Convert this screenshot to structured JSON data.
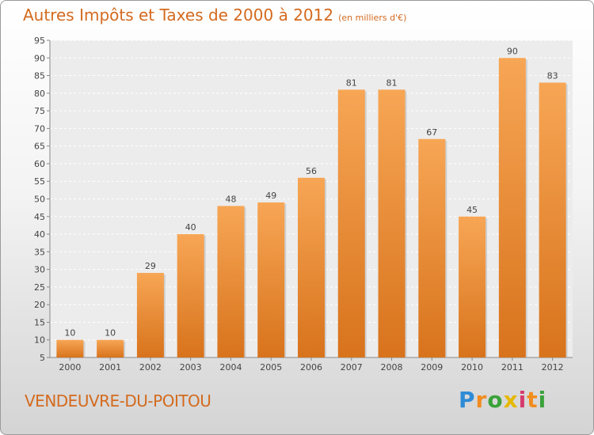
{
  "title": "Autres Impôts et Taxes de 2000 à 2012",
  "subtitle": "(en milliers d'€)",
  "commune": "VENDEUVRE-DU-POITOU",
  "logo": {
    "letters": [
      "P",
      "r",
      "o",
      "x",
      "i",
      "t",
      "i"
    ],
    "colors": [
      "#2e8bd6",
      "#f28c1e",
      "#3aa23a",
      "#e6b800",
      "#d63b6e",
      "#f28c1e",
      "#3aa23a"
    ]
  },
  "chart_data": {
    "type": "bar",
    "categories": [
      "2000",
      "2001",
      "2002",
      "2003",
      "2004",
      "2005",
      "2006",
      "2007",
      "2008",
      "2009",
      "2010",
      "2011",
      "2012"
    ],
    "values": [
      10,
      10,
      29,
      40,
      48,
      49,
      56,
      81,
      81,
      67,
      45,
      90,
      83
    ],
    "ylim": [
      5,
      95
    ],
    "yticks": [
      5,
      10,
      15,
      20,
      25,
      30,
      35,
      40,
      45,
      50,
      55,
      60,
      65,
      70,
      75,
      80,
      85,
      90,
      95
    ],
    "grid": true,
    "bar_color": "#f0892e"
  }
}
